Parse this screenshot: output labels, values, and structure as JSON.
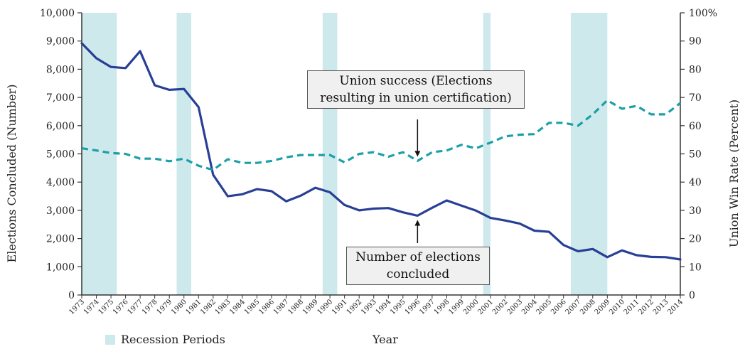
{
  "chart_data": {
    "type": "line",
    "xlabel": "Year",
    "ylabel": "Elections Concluded (Number)",
    "y2label": "Union Win Rate (Percent)",
    "ylim": [
      0,
      10000
    ],
    "y2lim": [
      0,
      100
    ],
    "yticks": [
      "0",
      "1,000",
      "2,000",
      "3,000",
      "4,000",
      "5,000",
      "6,000",
      "7,000",
      "8,000",
      "9,000",
      "10,000"
    ],
    "y2ticks": [
      "0",
      "10",
      "20",
      "30",
      "40",
      "50",
      "60",
      "70",
      "80",
      "90",
      "100%"
    ],
    "x": [
      1973,
      1974,
      1975,
      1976,
      1977,
      1978,
      1979,
      1980,
      1981,
      1982,
      1983,
      1984,
      1985,
      1986,
      1987,
      1988,
      1989,
      1990,
      1991,
      1992,
      1993,
      1994,
      1995,
      1996,
      1997,
      1998,
      1999,
      2000,
      2001,
      2002,
      2003,
      2004,
      2005,
      2006,
      2007,
      2008,
      2009,
      2010,
      2011,
      2012,
      2013,
      2014
    ],
    "series": [
      {
        "key": "elections",
        "axis": "left",
        "color": "#283f96",
        "style": "solid",
        "values": [
          8920,
          8390,
          8080,
          8040,
          8640,
          7430,
          7270,
          7300,
          6660,
          4260,
          3500,
          3570,
          3750,
          3680,
          3320,
          3520,
          3800,
          3640,
          3190,
          3000,
          3060,
          3080,
          2930,
          2810,
          3090,
          3350,
          3170,
          2990,
          2730,
          2640,
          2530,
          2280,
          2240,
          1770,
          1550,
          1630,
          1340,
          1580,
          1410,
          1350,
          1340,
          1260
        ]
      },
      {
        "key": "union_success",
        "axis": "right",
        "color": "#1b9fa8",
        "style": "dashed",
        "values": [
          52.0,
          51.2,
          50.3,
          50.0,
          48.3,
          48.3,
          47.4,
          48.3,
          45.8,
          44.3,
          48.1,
          46.8,
          46.8,
          47.5,
          48.8,
          49.6,
          49.6,
          49.6,
          47.0,
          50.0,
          50.6,
          49.0,
          50.6,
          47.5,
          50.6,
          51.2,
          53.2,
          52.0,
          54.0,
          56.2,
          56.8,
          57.0,
          61.0,
          61.0,
          60.0,
          64.0,
          69.0,
          66.0,
          67.0,
          64.0,
          64.0,
          68.0
        ]
      }
    ],
    "recessions": [
      [
        1973,
        1975.4
      ],
      [
        1979.5,
        1980.5
      ],
      [
        1989.5,
        1990.5
      ],
      [
        2000.5,
        2001
      ],
      [
        2006.5,
        2009
      ]
    ],
    "annotations": [
      {
        "text_line1": "Union success (Elections",
        "text_line2": "resulting in union certification)"
      },
      {
        "text_line1": "Number of elections",
        "text_line2": "concluded"
      }
    ],
    "legend": {
      "label": "Recession Periods",
      "color": "#cde9ec",
      "position": "bottom-left"
    }
  }
}
